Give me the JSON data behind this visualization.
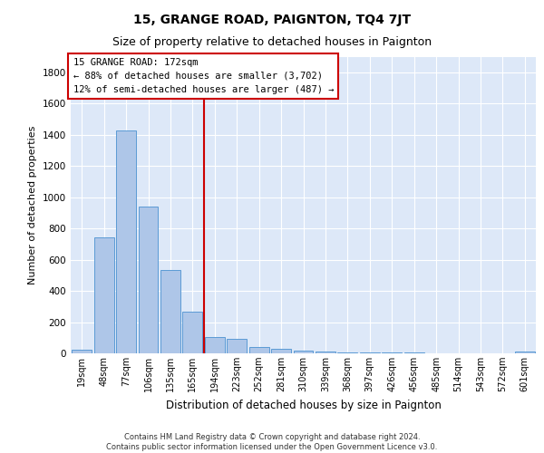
{
  "title": "15, GRANGE ROAD, PAIGNTON, TQ4 7JT",
  "subtitle": "Size of property relative to detached houses in Paignton",
  "xlabel": "Distribution of detached houses by size in Paignton",
  "ylabel": "Number of detached properties",
  "categories": [
    "19sqm",
    "48sqm",
    "77sqm",
    "106sqm",
    "135sqm",
    "165sqm",
    "194sqm",
    "223sqm",
    "252sqm",
    "281sqm",
    "310sqm",
    "339sqm",
    "368sqm",
    "397sqm",
    "426sqm",
    "456sqm",
    "485sqm",
    "514sqm",
    "543sqm",
    "572sqm",
    "601sqm"
  ],
  "values": [
    22,
    745,
    1425,
    938,
    532,
    265,
    105,
    93,
    40,
    27,
    18,
    10,
    8,
    5,
    3,
    3,
    2,
    2,
    1,
    1,
    12
  ],
  "bar_color": "#aec6e8",
  "bar_edge_color": "#5b9bd5",
  "vline_color": "#cc0000",
  "annotation_text": "15 GRANGE ROAD: 172sqm\n← 88% of detached houses are smaller (3,702)\n12% of semi-detached houses are larger (487) →",
  "annotation_box_color": "#ffffff",
  "annotation_box_edge_color": "#cc0000",
  "ylim": [
    0,
    1900
  ],
  "yticks": [
    0,
    200,
    400,
    600,
    800,
    1000,
    1200,
    1400,
    1600,
    1800
  ],
  "grid_color": "#cccccc",
  "background_color": "#dde8f8",
  "footer": "Contains HM Land Registry data © Crown copyright and database right 2024.\nContains public sector information licensed under the Open Government Licence v3.0.",
  "title_fontsize": 10,
  "subtitle_fontsize": 9
}
